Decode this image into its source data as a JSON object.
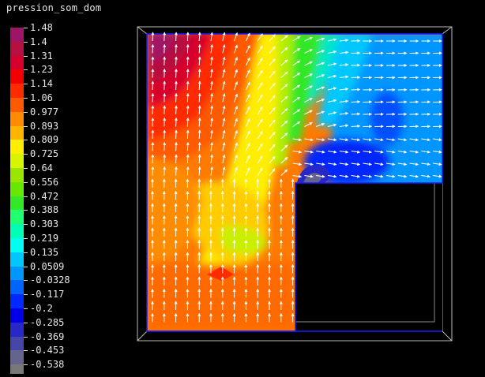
{
  "title": "pression_som_dom",
  "legend": {
    "labels": [
      "1.48",
      "1.4",
      "1.31",
      "1.23",
      "1.14",
      "1.06",
      "0.977",
      "0.893",
      "0.809",
      "0.725",
      "0.64",
      "0.556",
      "0.472",
      "0.388",
      "0.303",
      "0.219",
      "0.135",
      "0.0509",
      "-0.0328",
      "-0.117",
      "-0.2",
      "-0.285",
      "-0.369",
      "-0.453",
      "-0.538"
    ],
    "colors": [
      "#9e1466",
      "#b5103f",
      "#d7002c",
      "#f20000",
      "#ff2a00",
      "#ff5a00",
      "#ff8c00",
      "#ffb400",
      "#ffee00",
      "#d8f500",
      "#9ae600",
      "#66e800",
      "#33e828",
      "#20ff70",
      "#00ffb4",
      "#00fff0",
      "#00c8ff",
      "#0096ff",
      "#0064ff",
      "#0028ff",
      "#0000e6",
      "#2828c8",
      "#4646aa",
      "#64648c",
      "#787878"
    ]
  }
}
